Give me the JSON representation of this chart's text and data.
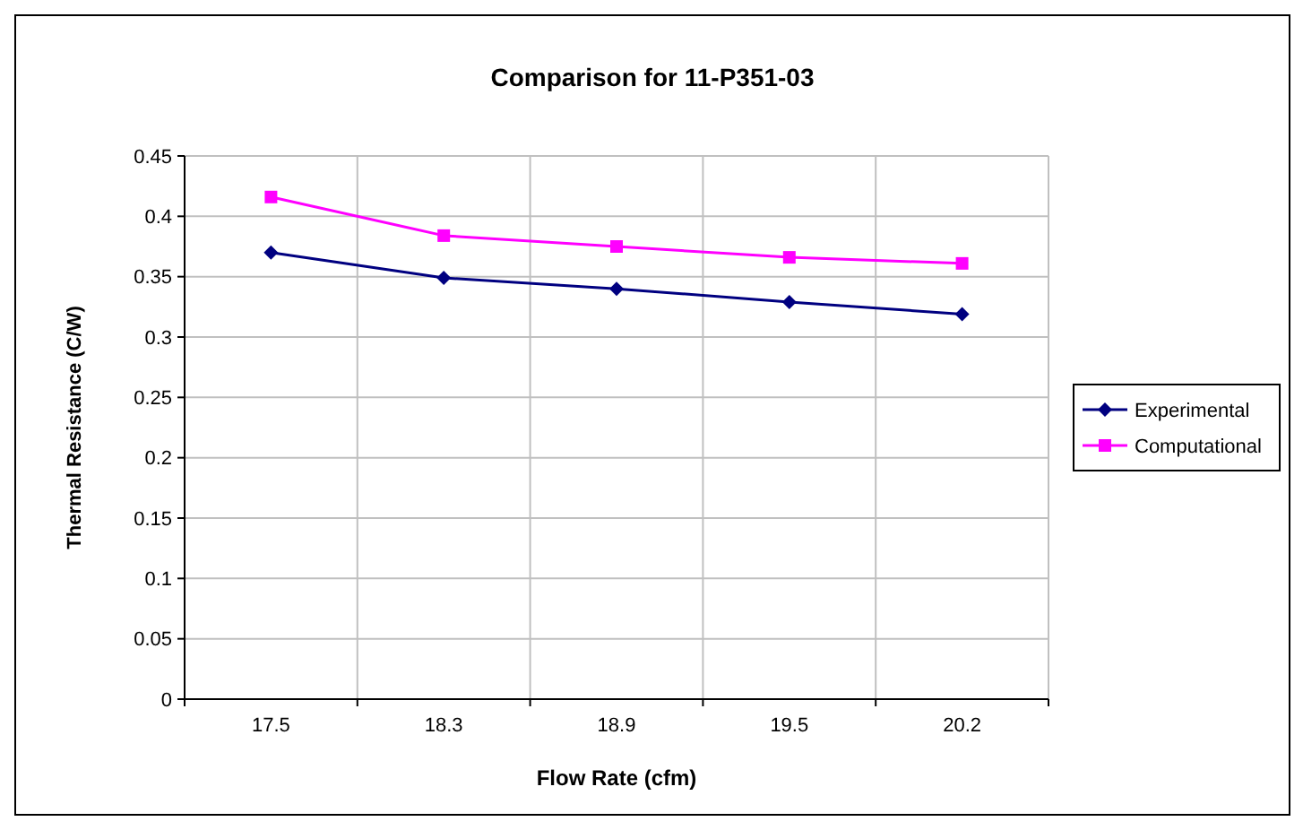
{
  "chart_data": {
    "type": "line",
    "title": "Comparison for 11-P351-03",
    "xlabel": "Flow Rate (cfm)",
    "ylabel": "Thermal Resistance (C/W)",
    "categories": [
      "17.5",
      "18.3",
      "18.9",
      "19.5",
      "20.2"
    ],
    "series": [
      {
        "name": "Experimental",
        "color": "#000080",
        "marker": "diamond",
        "values": [
          0.37,
          0.349,
          0.34,
          0.329,
          0.319
        ]
      },
      {
        "name": "Computational",
        "color": "#ff00ff",
        "marker": "square",
        "values": [
          0.416,
          0.384,
          0.375,
          0.366,
          0.361
        ]
      }
    ],
    "ylim": [
      0,
      0.45
    ],
    "yticks": [
      0,
      0.05,
      0.1,
      0.15,
      0.2,
      0.25,
      0.3,
      0.35,
      0.4,
      0.45
    ],
    "grid": true,
    "legend": "right"
  }
}
